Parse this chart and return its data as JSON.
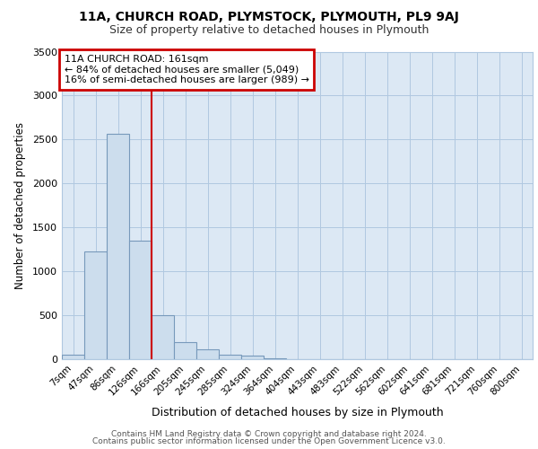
{
  "title1": "11A, CHURCH ROAD, PLYMSTOCK, PLYMOUTH, PL9 9AJ",
  "title2": "Size of property relative to detached houses in Plymouth",
  "xlabel": "Distribution of detached houses by size in Plymouth",
  "ylabel": "Number of detached properties",
  "bar_labels": [
    "7sqm",
    "47sqm",
    "86sqm",
    "126sqm",
    "166sqm",
    "205sqm",
    "245sqm",
    "285sqm",
    "324sqm",
    "364sqm",
    "404sqm",
    "443sqm",
    "483sqm",
    "522sqm",
    "562sqm",
    "602sqm",
    "641sqm",
    "681sqm",
    "721sqm",
    "760sqm",
    "800sqm"
  ],
  "bar_values": [
    50,
    1230,
    2570,
    1350,
    500,
    195,
    110,
    55,
    40,
    10,
    5,
    2,
    2,
    0,
    0,
    0,
    0,
    0,
    0,
    0,
    0
  ],
  "bar_color": "#ccdded",
  "bar_edge_color": "#7799bb",
  "vline_x": 3.5,
  "vline_color": "#cc0000",
  "ylim": [
    0,
    3500
  ],
  "yticks": [
    0,
    500,
    1000,
    1500,
    2000,
    2500,
    3000,
    3500
  ],
  "annotation_title": "11A CHURCH ROAD: 161sqm",
  "annotation_line1": "← 84% of detached houses are smaller (5,049)",
  "annotation_line2": "16% of semi-detached houses are larger (989) →",
  "annotation_box_color": "#ffffff",
  "annotation_box_edge": "#cc0000",
  "footer1": "Contains HM Land Registry data © Crown copyright and database right 2024.",
  "footer2": "Contains public sector information licensed under the Open Government Licence v3.0.",
  "bg_color": "#ffffff",
  "plot_bg_color": "#dce8f4"
}
